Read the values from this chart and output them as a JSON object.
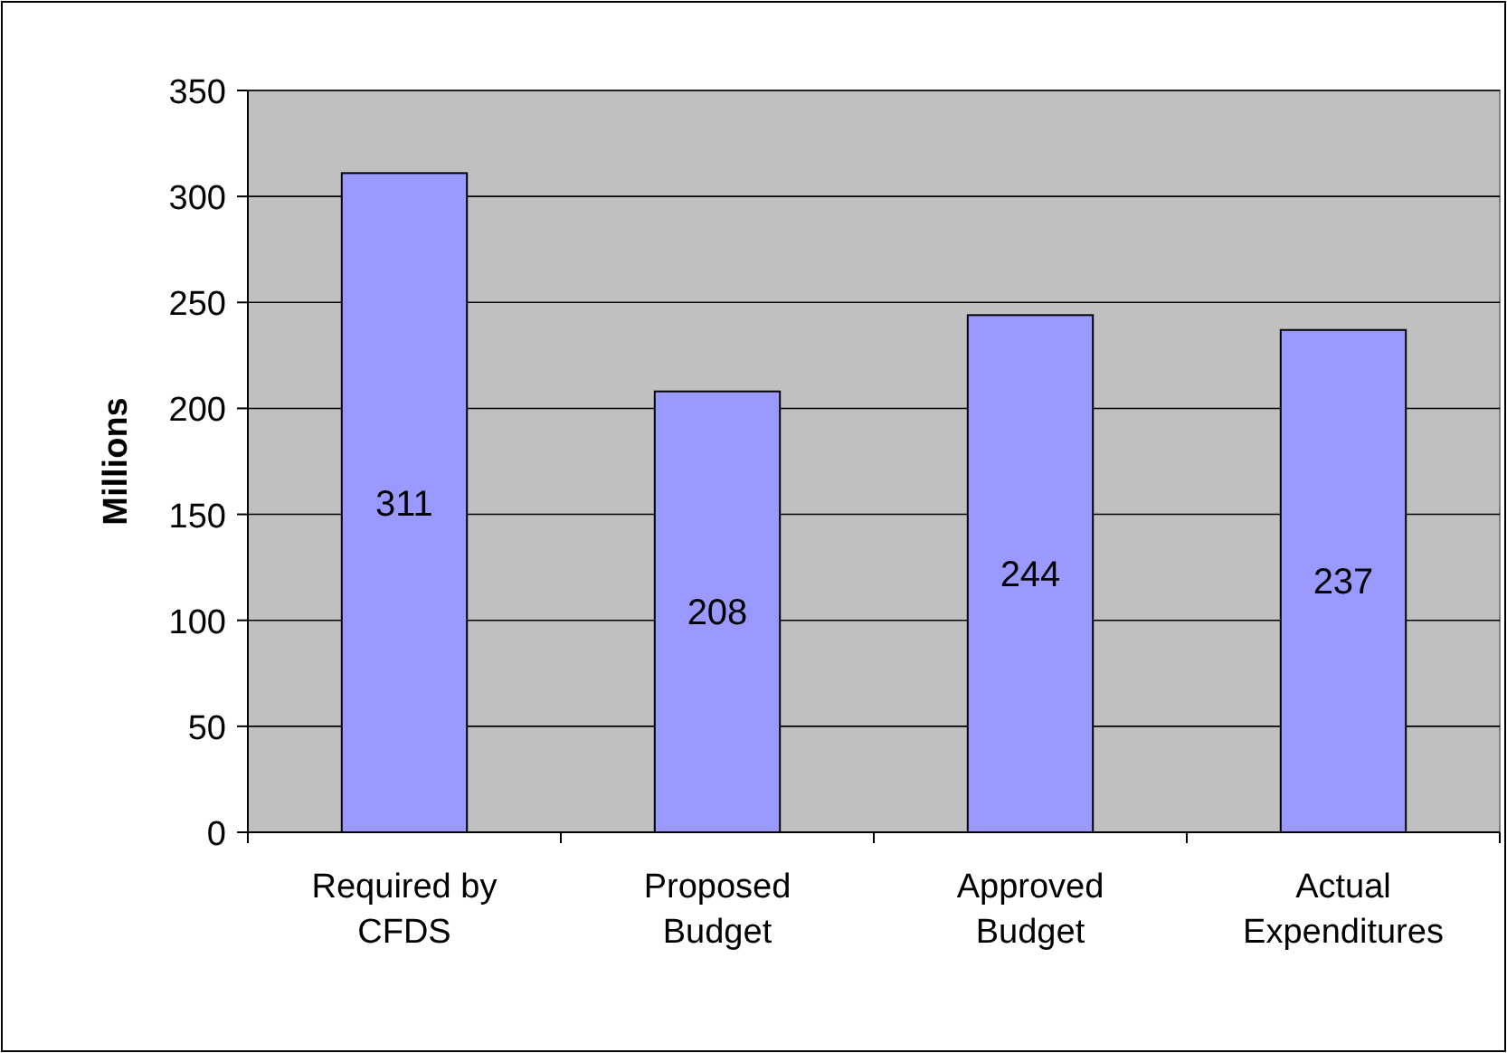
{
  "chart_data": {
    "type": "bar",
    "ylabel": "Millions",
    "categories": [
      "Required by\nCFDS",
      "Proposed\nBudget",
      "Approved\nBudget",
      "Actual\nExpenditures"
    ],
    "values": [
      311,
      208,
      244,
      237
    ],
    "color": "#9999ff",
    "ylim": [
      0,
      350
    ],
    "yticks": [
      0,
      50,
      100,
      150,
      200,
      250,
      300,
      350
    ],
    "grid": "y",
    "data_labels": true
  }
}
